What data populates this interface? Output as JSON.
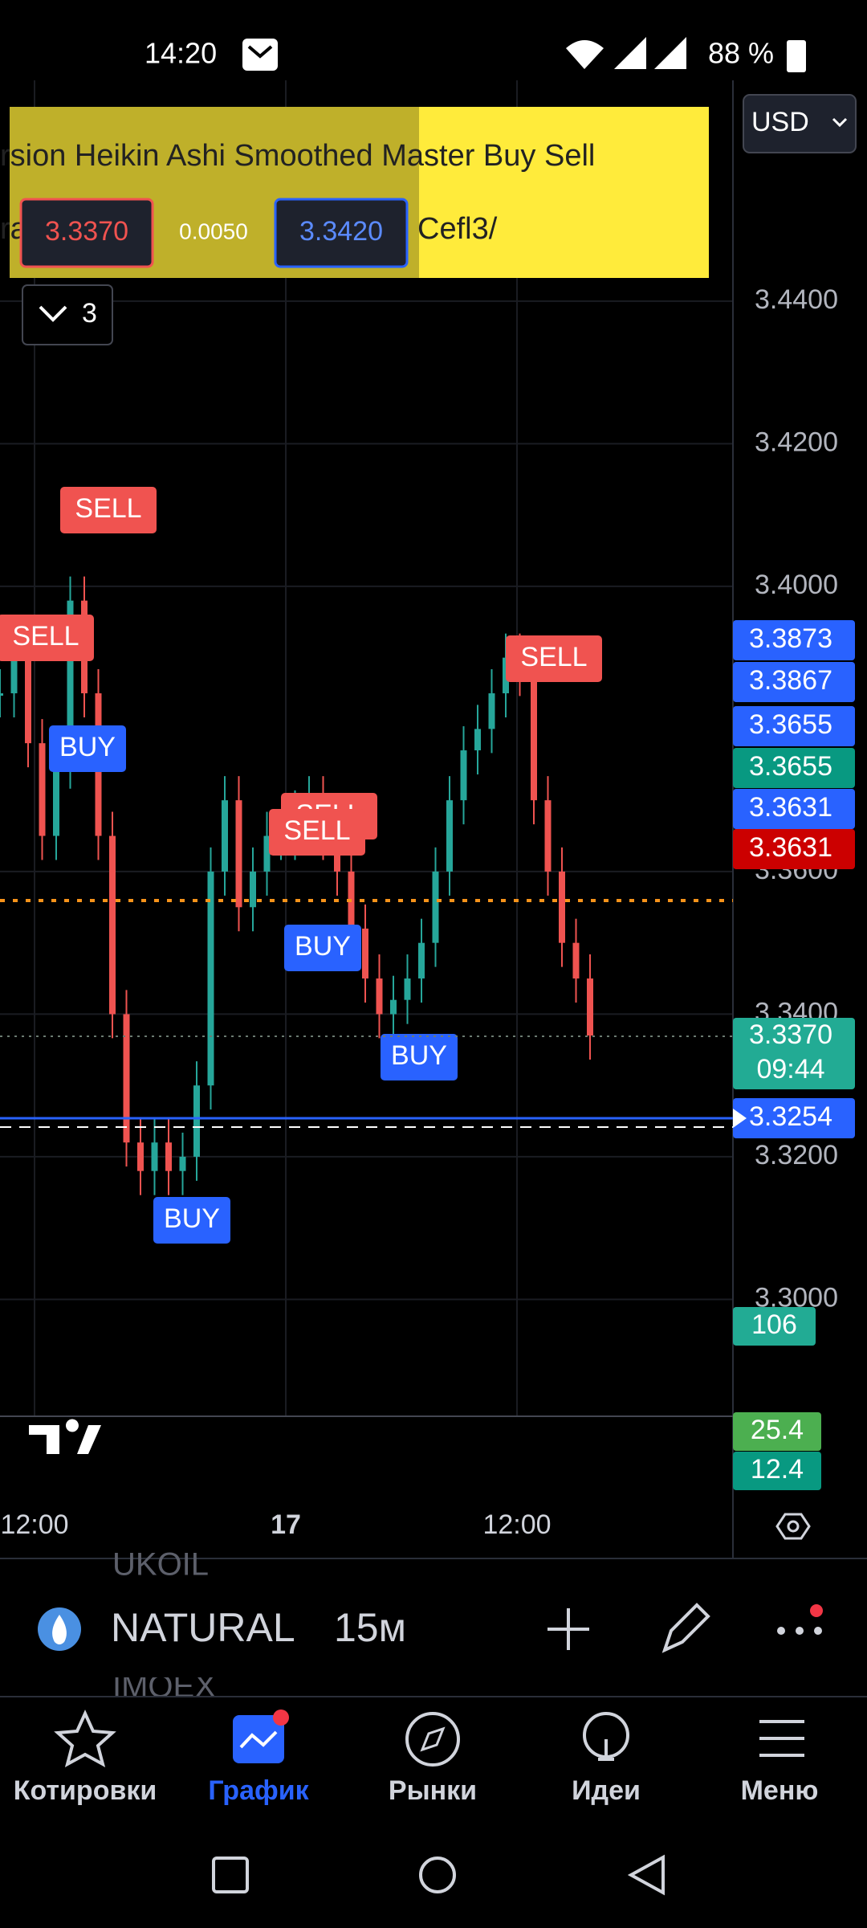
{
  "status_bar": {
    "time": "14:20",
    "battery": "88 %"
  },
  "currency": "USD",
  "indicator_banner": {
    "title": "rsion Heikin Ashi Smoothed Master Buy Sell",
    "link_start": "ra",
    "link_end": "Cefl3/",
    "bid": "3.3370",
    "spread": "0.0050",
    "ask": "3.3420"
  },
  "collapse_count": "3",
  "chart_data": {
    "type": "candlestick",
    "values": [
      3.385,
      3.39,
      3.378,
      3.365,
      3.375,
      3.398,
      3.385,
      3.365,
      3.34,
      3.322,
      3.318,
      3.322,
      3.318,
      3.32,
      3.33,
      3.36,
      3.37,
      3.355,
      3.36,
      3.365,
      3.365,
      3.368,
      3.37,
      3.365,
      3.36,
      3.352,
      3.345,
      3.34,
      3.342,
      3.345,
      3.35,
      3.36,
      3.37,
      3.377,
      3.38,
      3.385,
      3.39,
      3.388,
      3.37,
      3.36,
      3.35,
      3.345,
      3.337
    ],
    "up_color": "#26a69a",
    "down_color": "#ef5350",
    "ylim": [
      3.2836,
      3.4659
    ],
    "yticks": [
      {
        "value": 3.44,
        "label": "3.4400"
      },
      {
        "value": 3.42,
        "label": "3.4200"
      },
      {
        "value": 3.4,
        "label": "3.4000"
      },
      {
        "value": 3.36,
        "label": "3.3600"
      },
      {
        "value": 3.34,
        "label": "3.3400"
      },
      {
        "value": 3.32,
        "label": "3.3200"
      },
      {
        "value": 3.3,
        "label": "3.3000"
      }
    ],
    "grid": true,
    "x_labels": [
      "12:00",
      "17",
      "12:00"
    ],
    "signals": [
      {
        "label": "SELL",
        "color": "#f05350"
      },
      {
        "label": "SELL",
        "color": "#f05350"
      },
      {
        "label": "BUY",
        "color": "#2962ff"
      },
      {
        "label": "SELL",
        "color": "#f05350"
      },
      {
        "label": "SELL",
        "color": "#f05350"
      },
      {
        "label": "BUY",
        "color": "#2962ff"
      },
      {
        "label": "BUY",
        "color": "#2962ff"
      },
      {
        "label": "BUY",
        "color": "#2962ff"
      },
      {
        "label": "SELL",
        "color": "#f05350"
      }
    ],
    "price_tags": [
      {
        "label": "3.3873",
        "color": "#2962ff"
      },
      {
        "label": "3.3867",
        "color": "#2962ff"
      },
      {
        "label": "3.3655",
        "color": "#2962ff"
      },
      {
        "label": "3.3655",
        "color": "#089981"
      },
      {
        "label": "3.3631",
        "color": "#2962ff"
      },
      {
        "label": "3.3631",
        "color": "#cc0000"
      }
    ],
    "last_price": {
      "label": "3.3370",
      "countdown": "09:44",
      "color": "#22ab94"
    },
    "line_price": {
      "label": "3.3254",
      "color": "#2962ff"
    },
    "volume_tags": [
      {
        "label": "106",
        "color": "#22ab94"
      },
      {
        "label": "25.4",
        "color": "#4caf50"
      },
      {
        "label": "12.4",
        "color": "#089981"
      }
    ]
  },
  "symbol_bar": {
    "symbol": "NATURAL",
    "interval": "15м",
    "prev_symbol": "UKOIL",
    "next_symbol": "IMOEX"
  },
  "nav": [
    "Котировки",
    "График",
    "Рынки",
    "Идеи",
    "Меню"
  ]
}
